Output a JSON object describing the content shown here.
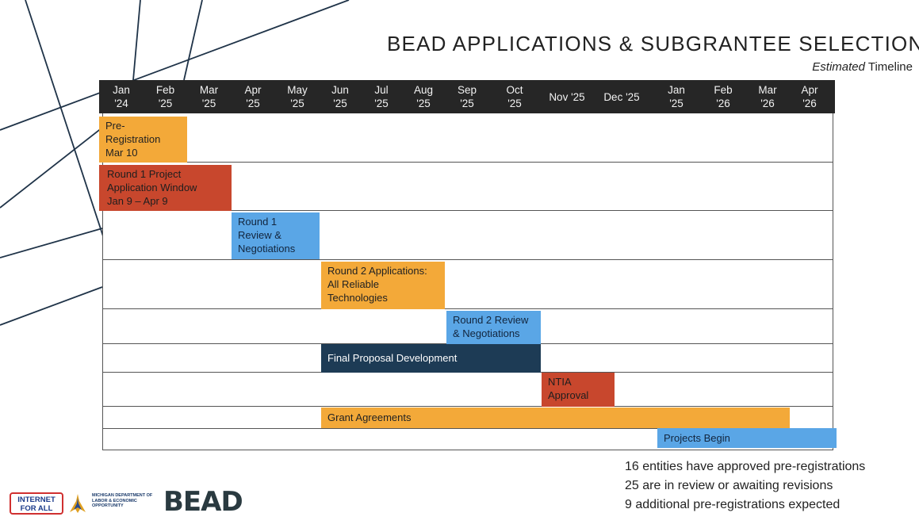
{
  "title": "BEAD APPLICATIONS & SUBGRANTEE SELECTION",
  "subtitle_em": "Estimated",
  "subtitle_rest": " Timeline",
  "months": [
    [
      "Jan",
      "'24"
    ],
    [
      "Feb",
      "'25"
    ],
    [
      "Mar",
      "'25"
    ],
    [
      "Apr",
      "'25"
    ],
    [
      "May",
      "'25"
    ],
    [
      "Jun",
      "'25"
    ],
    [
      "Jul",
      "'25"
    ],
    [
      "Aug",
      "'25"
    ],
    [
      "Sep",
      "'25"
    ],
    [
      "Oct",
      "'25"
    ],
    [
      "Nov '25",
      ""
    ],
    [
      "Dec '25",
      ""
    ],
    [
      "Jan",
      "'25"
    ],
    [
      "Feb",
      "'26"
    ],
    [
      "Mar",
      "'26"
    ],
    [
      "Apr",
      "'26"
    ]
  ],
  "tasks": [
    {
      "label": [
        "Pre-",
        "Registration",
        "Mar 10"
      ],
      "color": "orange"
    },
    {
      "label": [
        "Round 1 Project",
        "Application Window",
        "Jan 9 – Apr 9"
      ],
      "color": "red"
    },
    {
      "label": [
        "Round 1",
        "Review &",
        "Negotiations"
      ],
      "color": "blue"
    },
    {
      "label": [
        "Round 2 Applications:",
        "All Reliable",
        "Technologies"
      ],
      "color": "orange"
    },
    {
      "label": [
        "Round 2 Review",
        "& Negotiations"
      ],
      "color": "blue"
    },
    {
      "label": [
        "Final Proposal Development"
      ],
      "color": "navy"
    },
    {
      "label": [
        "NTIA",
        "Approval"
      ],
      "color": "red"
    },
    {
      "label": [
        "Grant Agreements"
      ],
      "color": "orange"
    },
    {
      "label": [
        "Projects Begin"
      ],
      "color": "blue"
    }
  ],
  "stats": {
    "line1": "16 entities have approved pre-registrations",
    "line2": "25 are in review or awaiting revisions",
    "line3": "9 additional pre-registrations expected"
  },
  "logos": {
    "internet_for_all": "INTERNET FOR ALL",
    "leo": "MICHIGAN DEPARTMENT OF LABOR & ECONOMIC OPPORTUNITY",
    "bead": "BEAD"
  }
}
